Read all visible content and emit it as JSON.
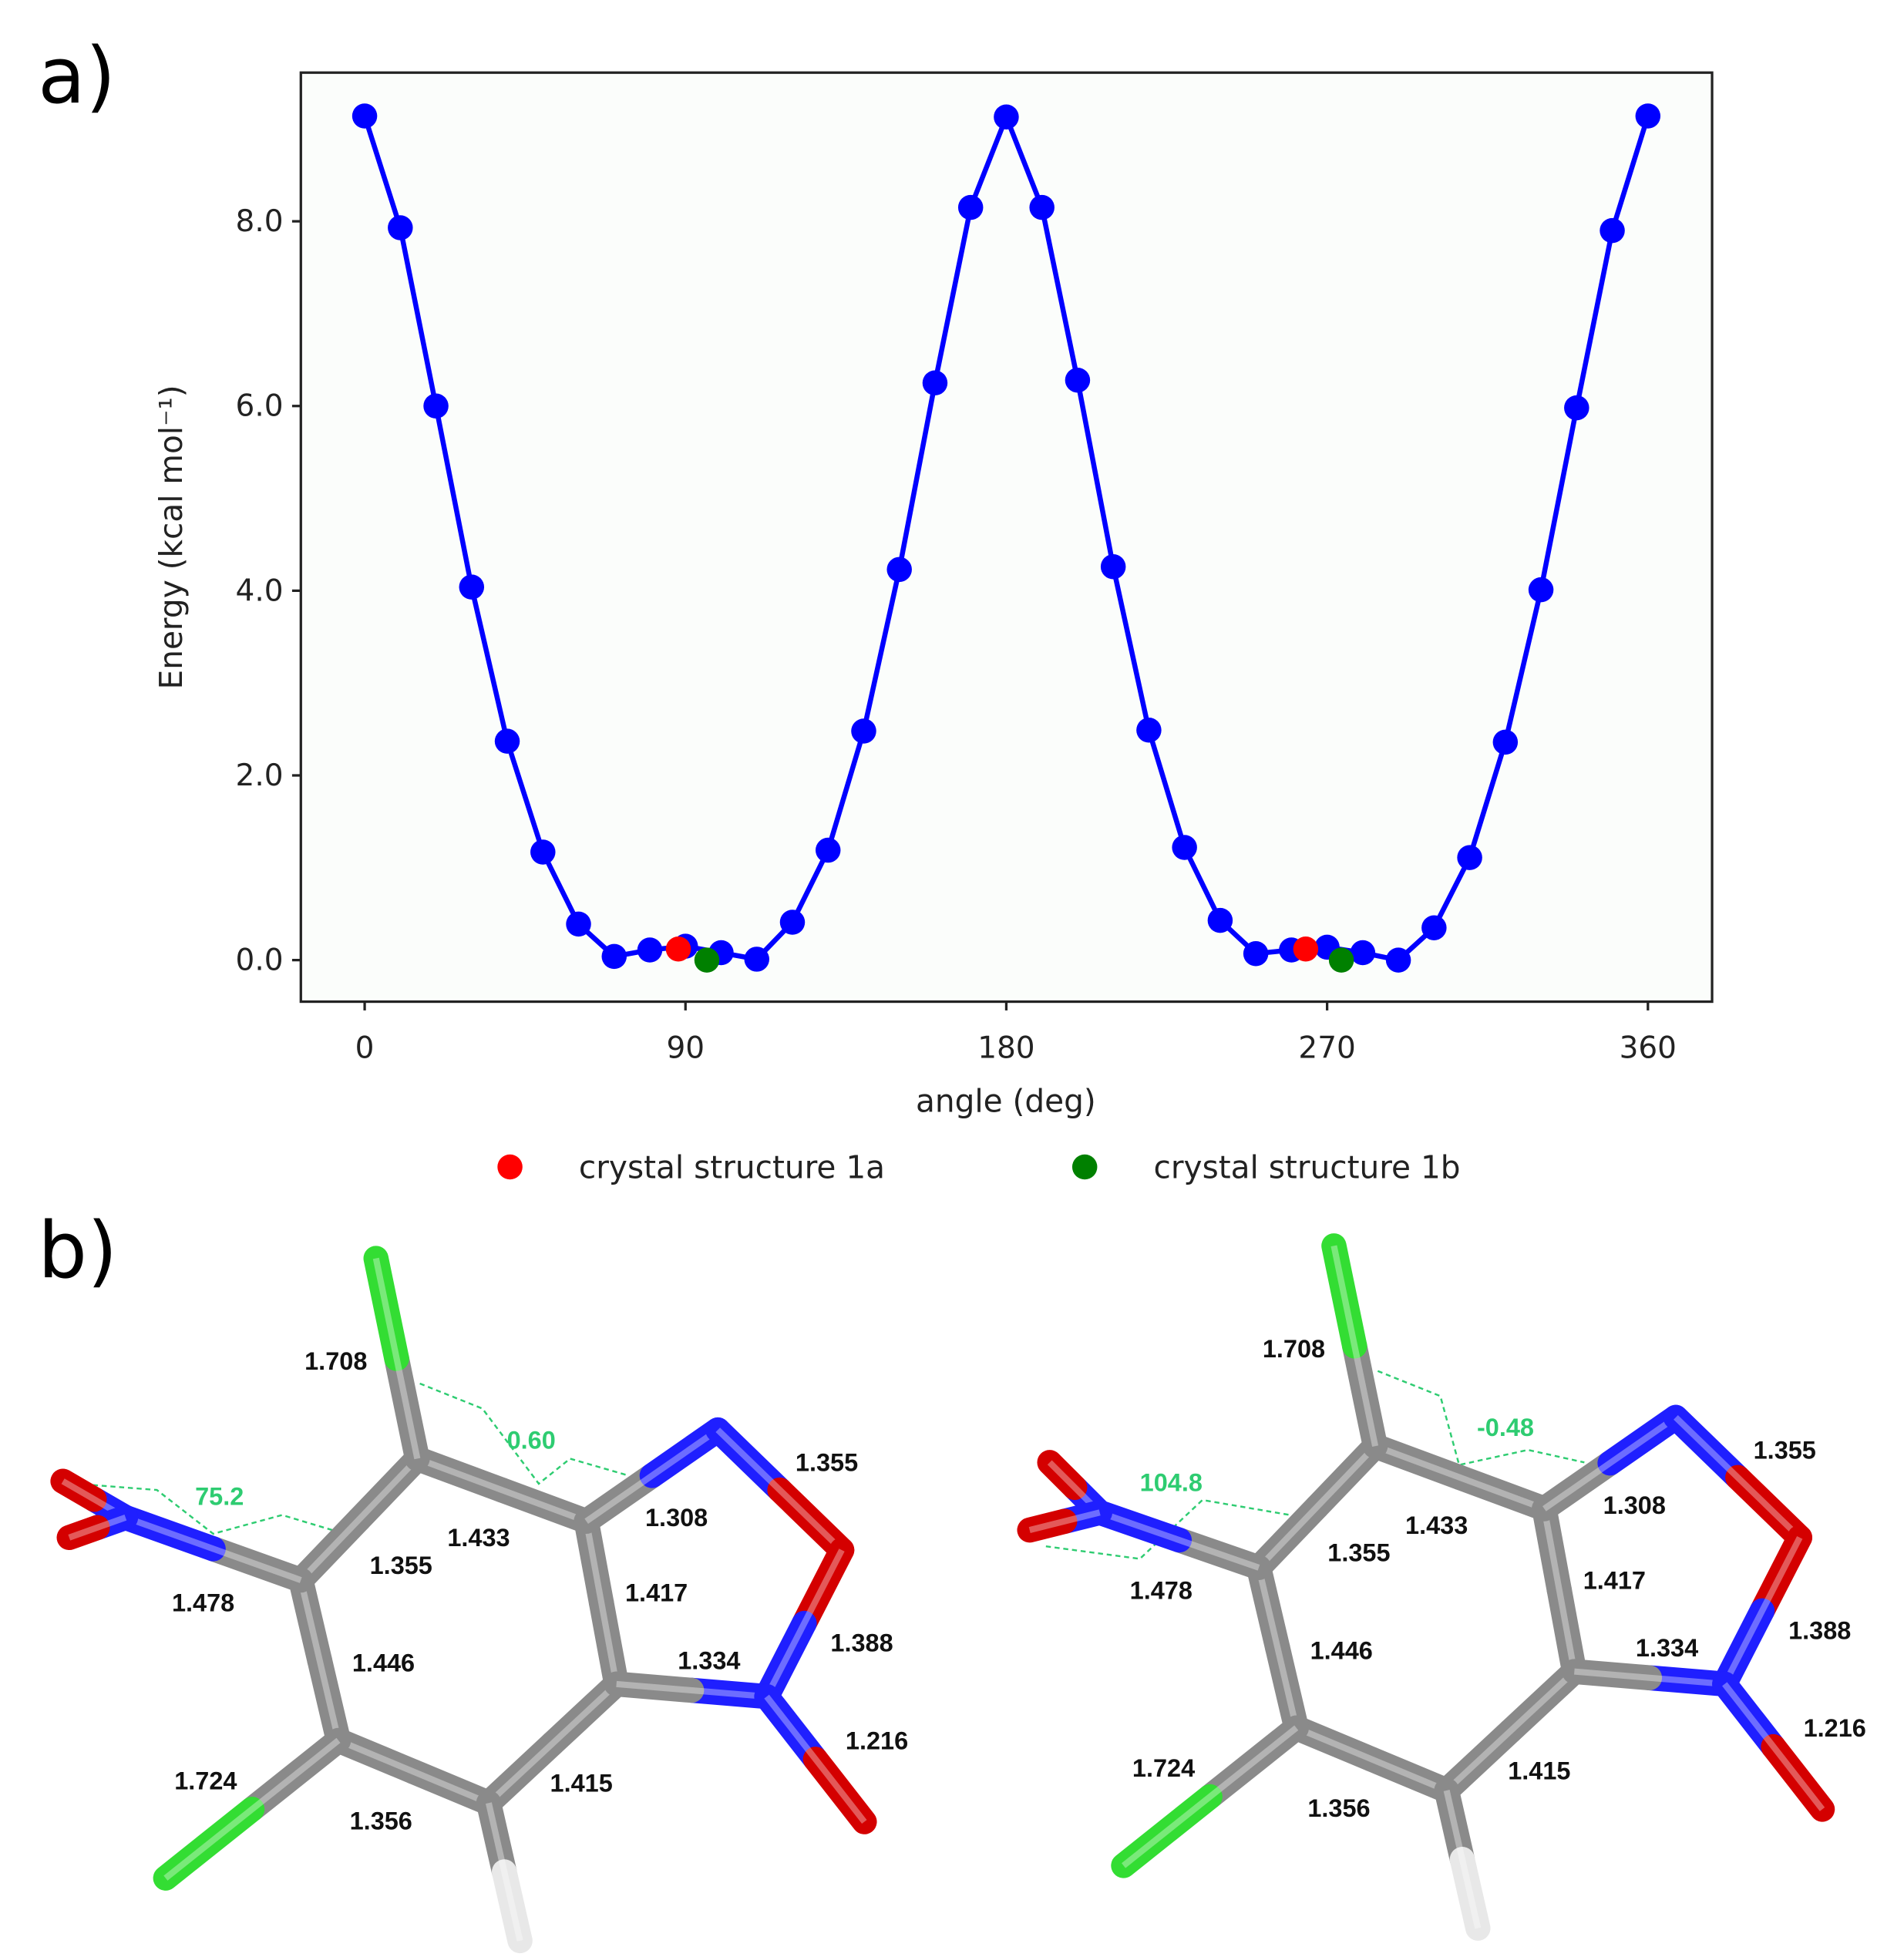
{
  "chart_data": {
    "type": "line",
    "x_label": "angle (deg)",
    "y_label": "Energy (kcal mol⁻¹)",
    "xlim": [
      -17.9,
      378
    ],
    "ylim": [
      -0.45,
      9.61
    ],
    "xticks": [
      0,
      90,
      180,
      270,
      360
    ],
    "yticks": [
      {
        "value": 0,
        "label": "0.0"
      },
      {
        "value": 2,
        "label": "2.0"
      },
      {
        "value": 4,
        "label": "4.0"
      },
      {
        "value": 6,
        "label": "6.0"
      },
      {
        "value": 8,
        "label": "8.0"
      }
    ],
    "legend": "bottom",
    "grid": false,
    "series": [
      {
        "color": "#0000ff",
        "line": true,
        "x": [
          0,
          10,
          20,
          30,
          40,
          50,
          60,
          70,
          80,
          90,
          100,
          110,
          120,
          130,
          140,
          150,
          160,
          170,
          180,
          190,
          200,
          210,
          220,
          230,
          240,
          250,
          260,
          270,
          280,
          290,
          300,
          310,
          320,
          330,
          340,
          350,
          360
        ],
        "values": [
          9.14,
          7.93,
          6.0,
          4.04,
          2.37,
          1.17,
          0.39,
          0.04,
          0.11,
          0.15,
          0.08,
          0.01,
          0.41,
          1.19,
          2.48,
          4.23,
          6.25,
          8.15,
          9.13,
          8.15,
          6.28,
          4.26,
          2.49,
          1.22,
          0.43,
          0.07,
          0.11,
          0.14,
          0.08,
          0.0,
          0.35,
          1.11,
          2.36,
          4.01,
          5.98,
          7.9,
          9.14
        ]
      },
      {
        "name": "crystal structure 1a",
        "color": "#ff0000",
        "line": false,
        "x": [
          88,
          264
        ],
        "values": [
          0.12,
          0.12
        ]
      },
      {
        "name": "crystal structure 1b",
        "color": "#008000",
        "line": false,
        "x": [
          96,
          274
        ],
        "values": [
          0.0,
          0.0
        ]
      }
    ]
  },
  "panel_labels": [
    "a)",
    "b)"
  ],
  "molecules": [
    {
      "bond_labels": [
        "1.708",
        "1.355",
        "1.355",
        "1.433",
        "1.308",
        "1.417",
        "1.478",
        "1.446",
        "1.334",
        "1.388",
        "1.216",
        "1.724",
        "1.356",
        "1.415"
      ],
      "angle_labels": [
        "75.2",
        "0.60"
      ]
    },
    {
      "bond_labels": [
        "1.708",
        "1.355",
        "1.355",
        "1.433",
        "1.308",
        "1.417",
        "1.478",
        "1.446",
        "1.334",
        "1.388",
        "1.216",
        "1.724",
        "1.356",
        "1.415"
      ],
      "angle_labels": [
        "104.8",
        "-0.48"
      ]
    }
  ]
}
